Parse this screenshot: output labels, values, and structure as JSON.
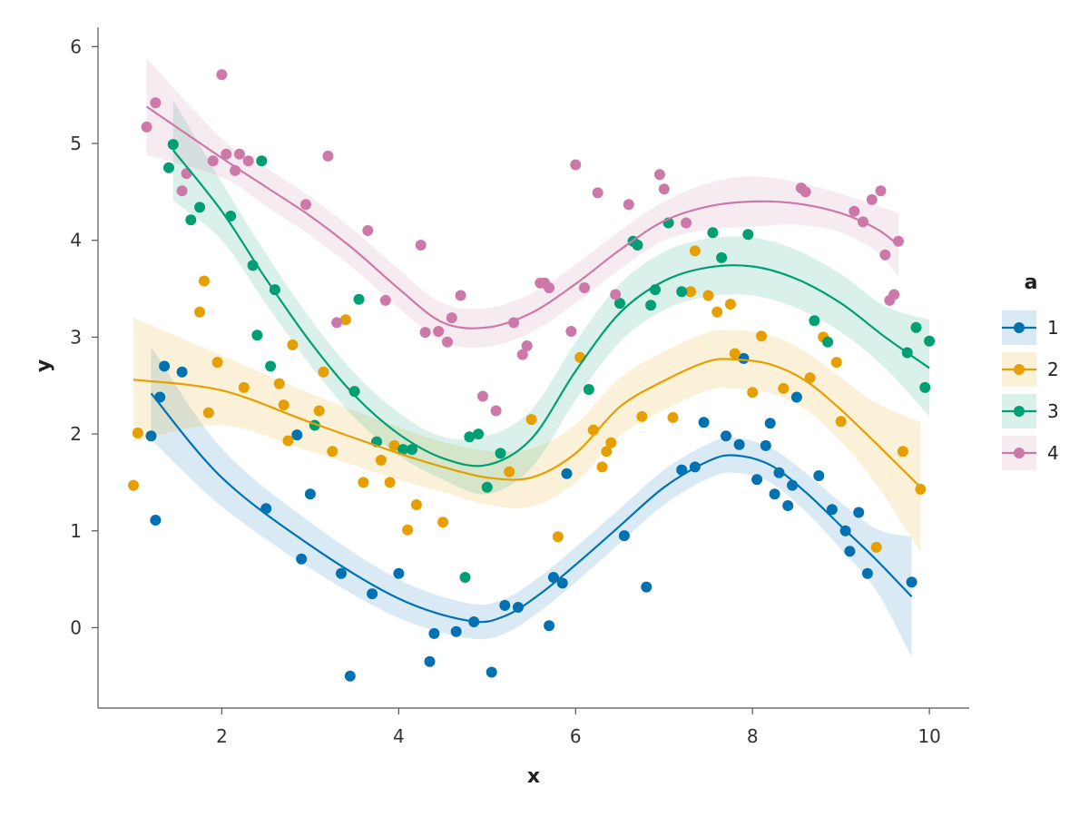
{
  "chart_data": {
    "type": "scatter",
    "title": "",
    "xlabel": "x",
    "ylabel": "y",
    "xlim": [
      0.6,
      10.45
    ],
    "ylim": [
      -0.83,
      6.2
    ],
    "xticks": [
      2,
      4,
      6,
      8,
      10
    ],
    "yticks": [
      0,
      1,
      2,
      3,
      4,
      5,
      6
    ],
    "grid": false,
    "legend": {
      "title": "a",
      "placement": "right"
    },
    "series": [
      {
        "name": "1",
        "color": "#0072b2",
        "points": [
          [
            1.2,
            1.98
          ],
          [
            1.25,
            1.11
          ],
          [
            1.3,
            2.38
          ],
          [
            1.35,
            2.7
          ],
          [
            1.55,
            2.64
          ],
          [
            2.5,
            1.23
          ],
          [
            2.85,
            1.99
          ],
          [
            2.9,
            0.71
          ],
          [
            3,
            1.38
          ],
          [
            3.35,
            0.56
          ],
          [
            3.45,
            -0.5
          ],
          [
            3.7,
            0.35
          ],
          [
            4,
            0.56
          ],
          [
            4.35,
            -0.35
          ],
          [
            4.4,
            -0.06
          ],
          [
            4.65,
            -0.04
          ],
          [
            4.85,
            0.06
          ],
          [
            5.05,
            -0.46
          ],
          [
            5.2,
            0.23
          ],
          [
            5.35,
            0.21
          ],
          [
            5.7,
            0.02
          ],
          [
            5.75,
            0.52
          ],
          [
            5.85,
            0.46
          ],
          [
            5.9,
            1.59
          ],
          [
            6.55,
            0.95
          ],
          [
            6.8,
            0.42
          ],
          [
            7.2,
            1.63
          ],
          [
            7.35,
            1.66
          ],
          [
            7.45,
            2.12
          ],
          [
            7.7,
            1.98
          ],
          [
            7.85,
            1.89
          ],
          [
            7.9,
            2.78
          ],
          [
            8.05,
            1.53
          ],
          [
            8.15,
            1.88
          ],
          [
            8.2,
            2.11
          ],
          [
            8.25,
            1.38
          ],
          [
            8.3,
            1.6
          ],
          [
            8.4,
            1.26
          ],
          [
            8.45,
            1.47
          ],
          [
            8.5,
            2.38
          ],
          [
            8.75,
            1.57
          ],
          [
            8.9,
            1.22
          ],
          [
            9.05,
            1
          ],
          [
            9.1,
            0.79
          ],
          [
            9.2,
            1.19
          ],
          [
            9.3,
            0.56
          ],
          [
            9.8,
            0.47
          ]
        ],
        "fit": [
          [
            1.2,
            2.42
          ],
          [
            2,
            1.55
          ],
          [
            3,
            0.85
          ],
          [
            4,
            0.3
          ],
          [
            4.8,
            0.07
          ],
          [
            5.2,
            0.12
          ],
          [
            5.6,
            0.35
          ],
          [
            6,
            0.65
          ],
          [
            6.5,
            1.05
          ],
          [
            7,
            1.45
          ],
          [
            7.5,
            1.72
          ],
          [
            7.8,
            1.78
          ],
          [
            8.2,
            1.68
          ],
          [
            8.6,
            1.4
          ],
          [
            9,
            1.05
          ],
          [
            9.4,
            0.7
          ],
          [
            9.8,
            0.32
          ]
        ],
        "band_halfwidth": [
          0.48,
          0.3,
          0.24,
          0.2,
          0.18,
          0.18,
          0.18,
          0.18,
          0.18,
          0.18,
          0.18,
          0.18,
          0.18,
          0.2,
          0.24,
          0.32,
          0.62
        ]
      },
      {
        "name": "2",
        "color": "#e69f00",
        "points": [
          [
            1,
            1.47
          ],
          [
            1.05,
            2.01
          ],
          [
            1.75,
            3.26
          ],
          [
            1.8,
            3.58
          ],
          [
            1.85,
            2.22
          ],
          [
            1.95,
            2.74
          ],
          [
            2.25,
            2.48
          ],
          [
            2.65,
            2.52
          ],
          [
            2.7,
            2.3
          ],
          [
            2.75,
            1.93
          ],
          [
            2.8,
            2.92
          ],
          [
            3.1,
            2.24
          ],
          [
            3.15,
            2.64
          ],
          [
            3.25,
            1.82
          ],
          [
            3.4,
            3.18
          ],
          [
            3.6,
            1.5
          ],
          [
            3.8,
            1.73
          ],
          [
            3.9,
            1.5
          ],
          [
            3.95,
            1.88
          ],
          [
            4.1,
            1.01
          ],
          [
            4.2,
            1.27
          ],
          [
            4.5,
            1.09
          ],
          [
            5.25,
            1.61
          ],
          [
            5.5,
            2.15
          ],
          [
            5.8,
            0.94
          ],
          [
            6.05,
            2.79
          ],
          [
            6.2,
            2.04
          ],
          [
            6.3,
            1.66
          ],
          [
            6.35,
            1.82
          ],
          [
            6.4,
            1.91
          ],
          [
            6.75,
            2.18
          ],
          [
            7.1,
            2.17
          ],
          [
            7.3,
            3.47
          ],
          [
            7.35,
            3.89
          ],
          [
            7.5,
            3.43
          ],
          [
            7.6,
            3.26
          ],
          [
            7.75,
            3.34
          ],
          [
            7.8,
            2.83
          ],
          [
            8,
            2.43
          ],
          [
            8.1,
            3.01
          ],
          [
            8.35,
            2.47
          ],
          [
            8.65,
            2.58
          ],
          [
            8.8,
            3
          ],
          [
            8.95,
            2.74
          ],
          [
            9,
            2.13
          ],
          [
            9.4,
            0.83
          ],
          [
            9.7,
            1.82
          ],
          [
            9.9,
            1.43
          ]
        ],
        "fit": [
          [
            1,
            2.56
          ],
          [
            2,
            2.45
          ],
          [
            3,
            2.12
          ],
          [
            4,
            1.8
          ],
          [
            4.5,
            1.66
          ],
          [
            5,
            1.55
          ],
          [
            5.5,
            1.55
          ],
          [
            6,
            1.8
          ],
          [
            6.5,
            2.28
          ],
          [
            7,
            2.55
          ],
          [
            7.5,
            2.75
          ],
          [
            7.8,
            2.77
          ],
          [
            8.2,
            2.72
          ],
          [
            8.6,
            2.55
          ],
          [
            9,
            2.25
          ],
          [
            9.4,
            1.9
          ],
          [
            9.9,
            1.45
          ]
        ],
        "band_halfwidth": [
          0.64,
          0.36,
          0.3,
          0.27,
          0.26,
          0.28,
          0.3,
          0.3,
          0.3,
          0.3,
          0.3,
          0.3,
          0.3,
          0.3,
          0.33,
          0.42,
          0.67
        ]
      },
      {
        "name": "3",
        "color": "#009e73",
        "points": [
          [
            1.4,
            4.75
          ],
          [
            1.45,
            4.99
          ],
          [
            1.65,
            4.21
          ],
          [
            1.75,
            4.34
          ],
          [
            2.1,
            4.25
          ],
          [
            2.35,
            3.74
          ],
          [
            2.4,
            3.02
          ],
          [
            2.45,
            4.82
          ],
          [
            2.55,
            2.7
          ],
          [
            2.6,
            3.49
          ],
          [
            3.05,
            2.09
          ],
          [
            3.5,
            2.44
          ],
          [
            3.55,
            3.39
          ],
          [
            3.75,
            1.92
          ],
          [
            4.05,
            1.84
          ],
          [
            4.15,
            1.84
          ],
          [
            4.75,
            0.52
          ],
          [
            4.8,
            1.97
          ],
          [
            4.9,
            2
          ],
          [
            5,
            1.45
          ],
          [
            5.15,
            1.8
          ],
          [
            6.15,
            2.46
          ],
          [
            6.5,
            3.35
          ],
          [
            6.65,
            3.99
          ],
          [
            6.7,
            3.95
          ],
          [
            6.85,
            3.33
          ],
          [
            6.9,
            3.49
          ],
          [
            7.05,
            4.18
          ],
          [
            7.2,
            3.47
          ],
          [
            7.55,
            4.08
          ],
          [
            7.65,
            3.82
          ],
          [
            7.95,
            4.06
          ],
          [
            8.7,
            3.17
          ],
          [
            8.85,
            2.95
          ],
          [
            9.75,
            2.84
          ],
          [
            9.85,
            3.1
          ],
          [
            9.95,
            2.48
          ],
          [
            10,
            2.96
          ]
        ],
        "fit": [
          [
            1.45,
            4.93
          ],
          [
            2,
            4.3
          ],
          [
            2.5,
            3.6
          ],
          [
            3,
            2.95
          ],
          [
            3.5,
            2.4
          ],
          [
            4,
            2
          ],
          [
            4.5,
            1.75
          ],
          [
            5,
            1.68
          ],
          [
            5.5,
            1.95
          ],
          [
            6,
            2.65
          ],
          [
            6.5,
            3.25
          ],
          [
            7,
            3.58
          ],
          [
            7.5,
            3.72
          ],
          [
            8,
            3.73
          ],
          [
            8.5,
            3.6
          ],
          [
            9,
            3.35
          ],
          [
            9.5,
            3
          ],
          [
            10,
            2.68
          ]
        ],
        "band_halfwidth": [
          0.52,
          0.3,
          0.26,
          0.24,
          0.23,
          0.22,
          0.22,
          0.3,
          0.3,
          0.3,
          0.3,
          0.3,
          0.3,
          0.3,
          0.3,
          0.3,
          0.32,
          0.5
        ]
      },
      {
        "name": "4",
        "color": "#cc79a7",
        "points": [
          [
            1.15,
            5.17
          ],
          [
            1.25,
            5.42
          ],
          [
            1.55,
            4.51
          ],
          [
            1.6,
            4.69
          ],
          [
            1.9,
            4.82
          ],
          [
            2,
            5.71
          ],
          [
            2.05,
            4.89
          ],
          [
            2.15,
            4.72
          ],
          [
            2.2,
            4.89
          ],
          [
            2.3,
            4.82
          ],
          [
            2.95,
            4.37
          ],
          [
            3.2,
            4.87
          ],
          [
            3.3,
            3.15
          ],
          [
            3.65,
            4.1
          ],
          [
            3.85,
            3.38
          ],
          [
            4.25,
            3.95
          ],
          [
            4.3,
            3.05
          ],
          [
            4.45,
            3.06
          ],
          [
            4.55,
            2.95
          ],
          [
            4.6,
            3.2
          ],
          [
            4.7,
            3.43
          ],
          [
            4.95,
            2.39
          ],
          [
            5.1,
            2.24
          ],
          [
            5.3,
            3.15
          ],
          [
            5.4,
            2.82
          ],
          [
            5.45,
            2.91
          ],
          [
            5.6,
            3.56
          ],
          [
            5.65,
            3.56
          ],
          [
            5.7,
            3.51
          ],
          [
            5.95,
            3.06
          ],
          [
            6,
            4.78
          ],
          [
            6.1,
            3.51
          ],
          [
            6.25,
            4.49
          ],
          [
            6.45,
            3.44
          ],
          [
            6.6,
            4.37
          ],
          [
            6.95,
            4.68
          ],
          [
            7,
            4.53
          ],
          [
            7.25,
            4.18
          ],
          [
            8.55,
            4.54
          ],
          [
            8.6,
            4.5
          ],
          [
            9.15,
            4.3
          ],
          [
            9.25,
            4.19
          ],
          [
            9.35,
            4.42
          ],
          [
            9.45,
            4.51
          ],
          [
            9.5,
            3.85
          ],
          [
            9.55,
            3.38
          ],
          [
            9.6,
            3.44
          ],
          [
            9.65,
            3.99
          ]
        ],
        "fit": [
          [
            1.15,
            5.38
          ],
          [
            2,
            4.85
          ],
          [
            2.5,
            4.55
          ],
          [
            3,
            4.25
          ],
          [
            3.5,
            3.9
          ],
          [
            4,
            3.5
          ],
          [
            4.5,
            3.15
          ],
          [
            5,
            3.1
          ],
          [
            5.5,
            3.25
          ],
          [
            6,
            3.55
          ],
          [
            6.5,
            3.9
          ],
          [
            7,
            4.2
          ],
          [
            7.5,
            4.35
          ],
          [
            8,
            4.4
          ],
          [
            8.5,
            4.38
          ],
          [
            9,
            4.28
          ],
          [
            9.4,
            4.12
          ],
          [
            9.65,
            3.95
          ]
        ],
        "band_halfwidth": [
          0.5,
          0.2,
          0.2,
          0.2,
          0.2,
          0.2,
          0.2,
          0.2,
          0.2,
          0.2,
          0.2,
          0.2,
          0.24,
          0.26,
          0.22,
          0.2,
          0.24,
          0.33
        ]
      }
    ]
  }
}
